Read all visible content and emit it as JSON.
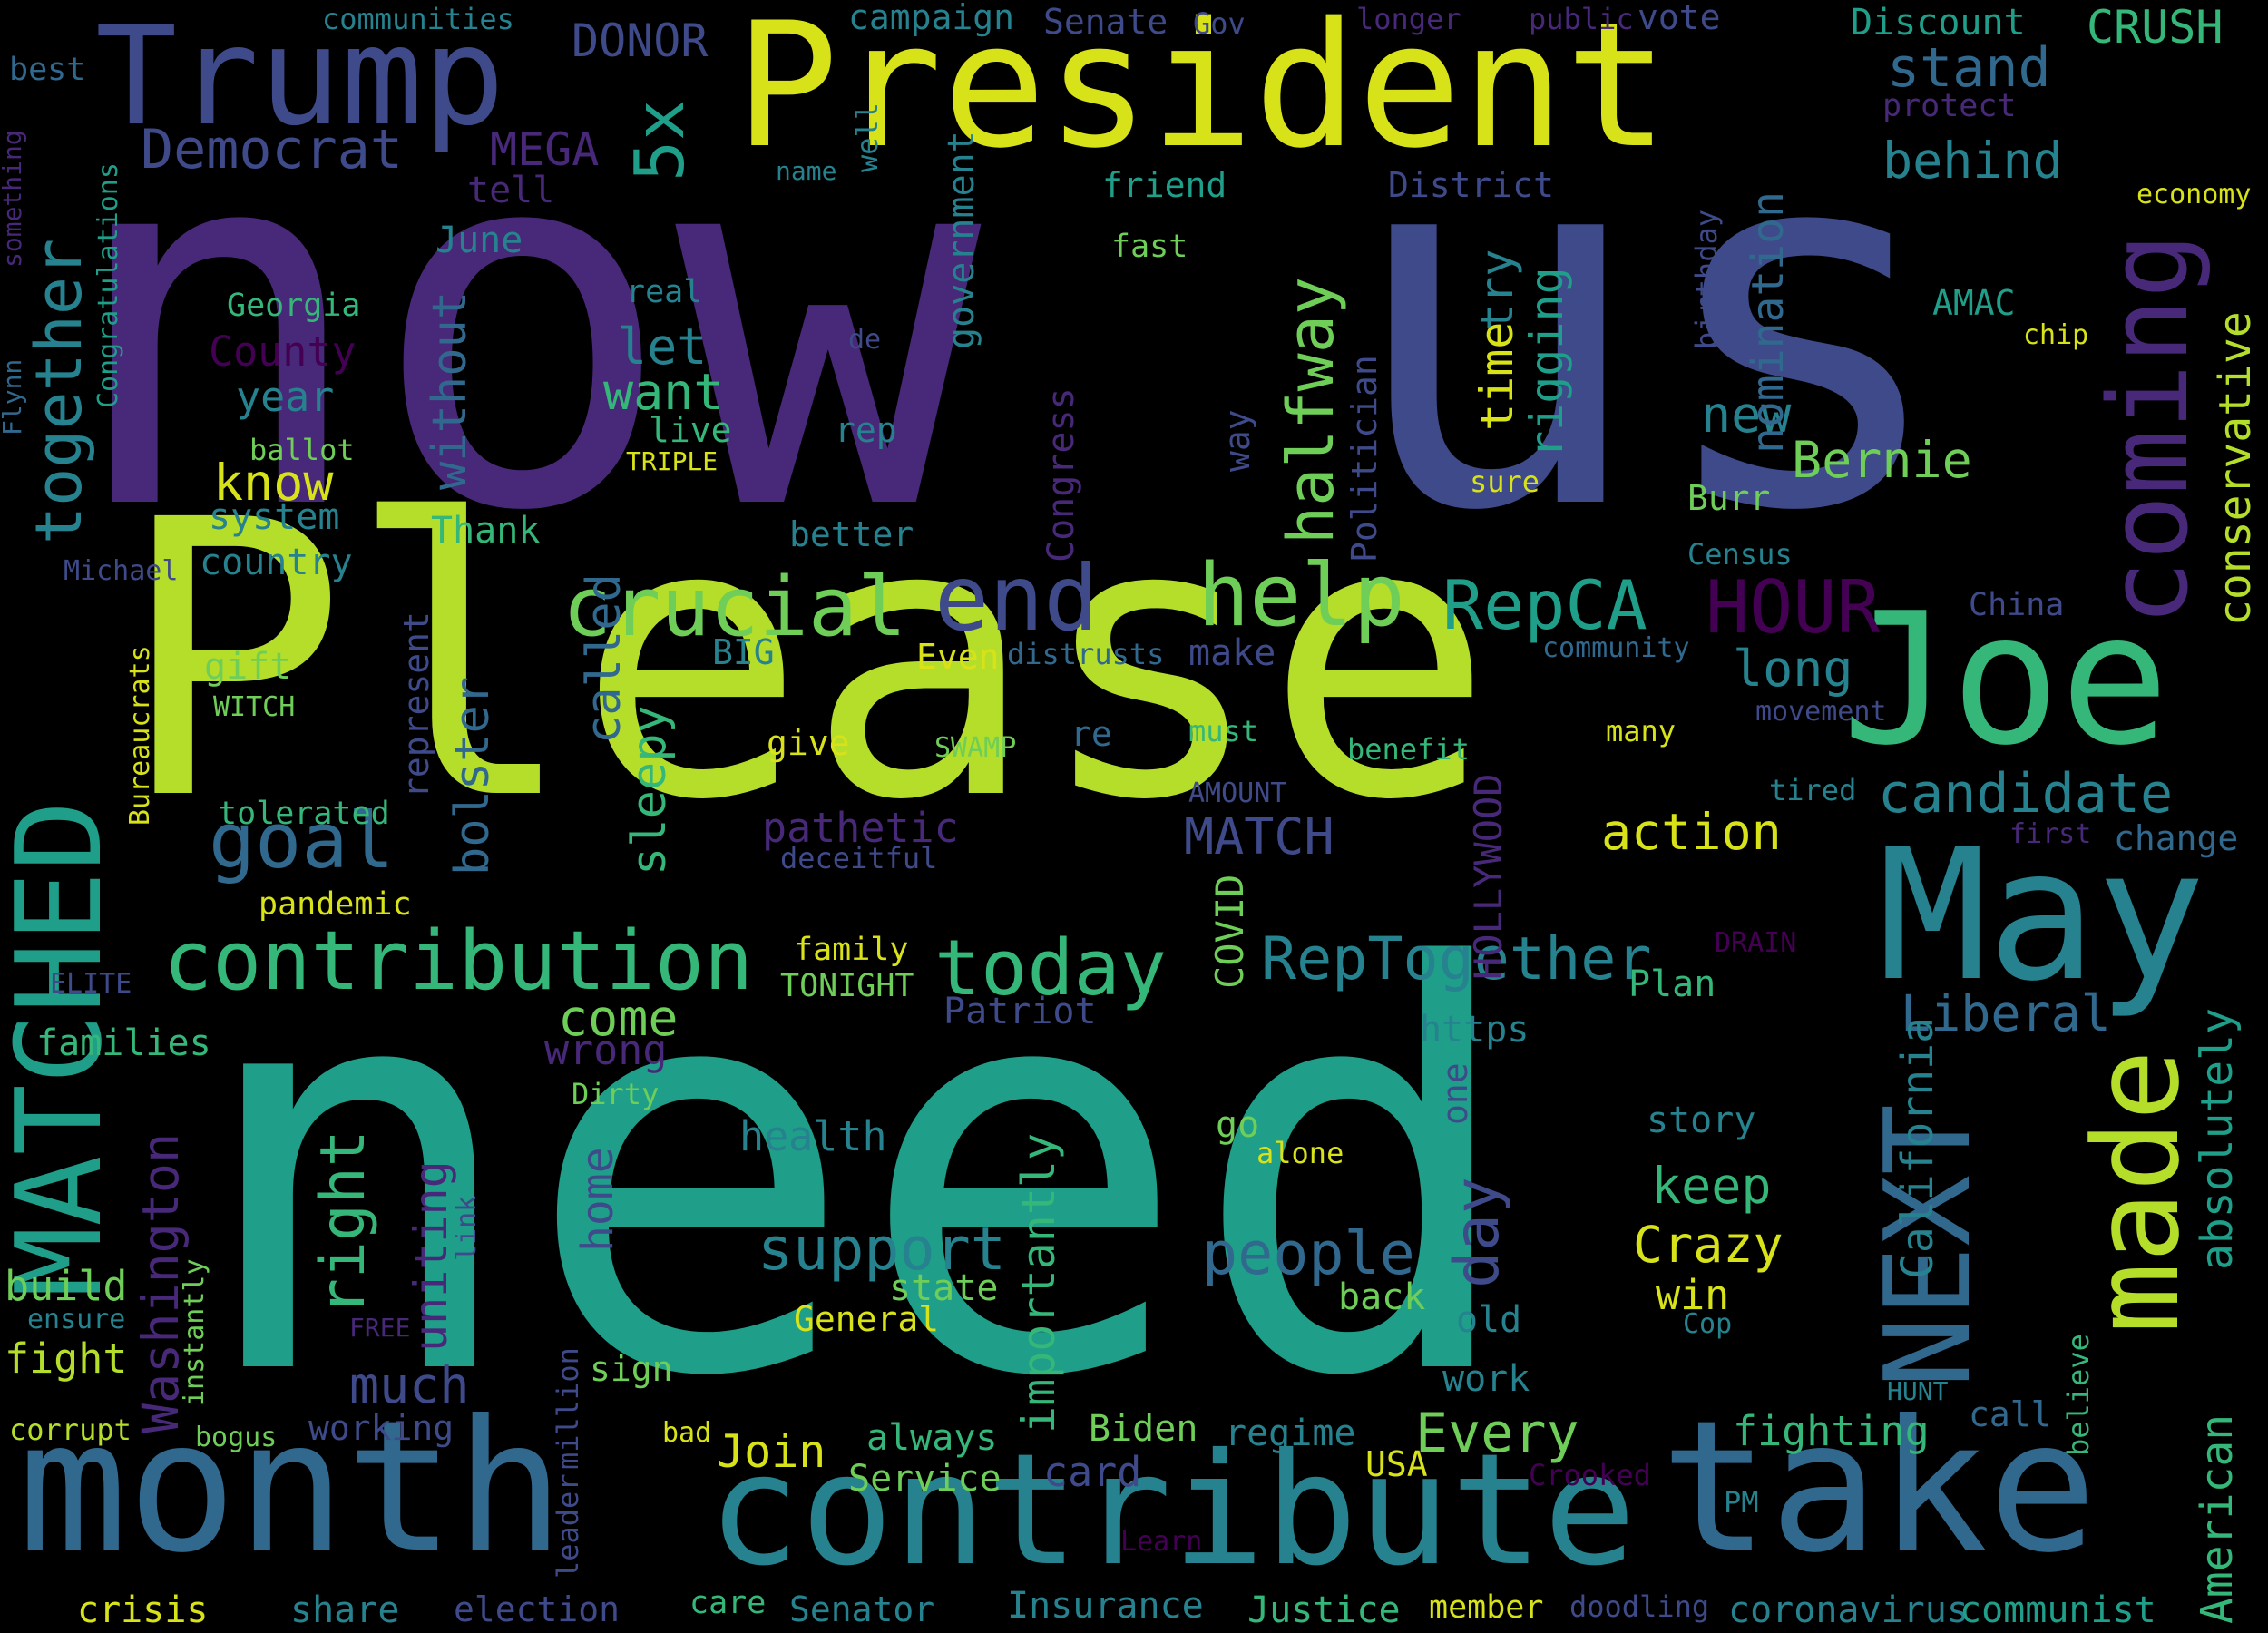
{
  "background": "#000000",
  "palette": [
    "#440154",
    "#482878",
    "#3e4a89",
    "#31688e",
    "#26828e",
    "#1f9e89",
    "#35b779",
    "#6ece58",
    "#b5de2b",
    "#fde725"
  ],
  "words": {
    "now": "now",
    "us": "us",
    "please": "Please",
    "need": "need",
    "president": "President",
    "trump": "Trump",
    "month": "month",
    "contribute": "contribute",
    "take": "take",
    "may": "May",
    "joe": "Joe",
    "matched": "MATCHED",
    "coming": "coming",
    "made": "made",
    "next": "NEXT",
    "crucial": "crucial",
    "end": "end",
    "help": "help",
    "contribution": "contribution",
    "today": "today",
    "goal": "goal",
    "together": "together",
    "halfway": "halfway",
    "reptogether": "RepTogether",
    "repca": "RepCA",
    "hour": "HOUR",
    "democrat": "Democrat",
    "stand": "stand",
    "behind": "behind",
    "support": "support",
    "people": "people",
    "candidate": "candidate",
    "bernie": "Bernie",
    "liberal": "Liberal",
    "absolutely": "absolutely",
    "american": "American",
    "california": "California",
    "conservative": "conservative",
    "crazy": "Crazy",
    "keep": "keep",
    "action": "action",
    "every": "Every",
    "join": "Join",
    "right": "right",
    "much": "much",
    "day": "day",
    "importantly": "importantly",
    "come": "come",
    "wrong": "wrong",
    "want": "want",
    "let": "let",
    "know": "know",
    "long": "long",
    "new": "new",
    "rigging": "rigging",
    "try": "try",
    "time": "time",
    "nomination": "nomination",
    "five_x": "5x",
    "mega": "MEGA",
    "donor": "DONOR",
    "crush": "CRUSH",
    "discount": "Discount",
    "washington": "Washington",
    "uniting": "uniting",
    "bolster": "bolster",
    "called": "called",
    "sleepy": "sleepy",
    "without": "without",
    "match": "MATCH",
    "hollywood": "HOLLYWOOD",
    "pathetic": "pathetic",
    "home": "home",
    "health": "health",
    "story": "story",
    "win": "win",
    "fighting": "fighting",
    "biden": "Biden",
    "regime": "regime",
    "card": "card",
    "always": "always",
    "service": "Service",
    "justice": "Justice",
    "member": "member",
    "coronavirus": "coronavirus",
    "communist": "communist",
    "insurance": "Insurance",
    "senator": "Senator",
    "care": "care",
    "election": "election",
    "share": "share",
    "crisis": "crisis",
    "working": "working",
    "fight": "fight",
    "build": "build",
    "families": "families",
    "gift": "gift",
    "witch": "WITCH",
    "system": "system",
    "country": "country",
    "year": "year",
    "county": "County",
    "georgia": "Georgia",
    "june": "June",
    "tell": "tell",
    "friend": "friend",
    "district": "District",
    "fast": "fast",
    "real": "real",
    "rep": "rep",
    "live": "live",
    "triple": "TRIPLE",
    "better": "better",
    "thank": "Thank",
    "represent": "represent",
    "big": "BIG",
    "even": "Even",
    "distrusts": "distrusts",
    "make": "make",
    "community": "community",
    "china": "China",
    "census": "Census",
    "burr": "Burr",
    "sure": "sure",
    "chip": "chip",
    "amac": "AMAC",
    "economy": "economy",
    "protect": "protect",
    "vote": "vote",
    "public": "public",
    "longer": "longer",
    "gov": "Gov",
    "senate": "Senate",
    "campaign": "campaign",
    "communities": "communities",
    "best": "best",
    "name": "name",
    "well": "well",
    "government": "government",
    "congress": "Congress",
    "politician": "Politician",
    "way": "way",
    "covid": "COVID",
    "amount": "AMOUNT",
    "must": "must",
    "benefit": "benefit",
    "many": "many",
    "movement": "movement",
    "tired": "tired",
    "first": "first",
    "change": "change",
    "drain": "DRAIN",
    "elite": "ELITE",
    "family": "family",
    "tonight": "TONIGHT",
    "patriot": "Patriot",
    "plan": "Plan",
    "https": "https",
    "one": "one",
    "go": "go",
    "alone": "alone",
    "dirty": "Dirty",
    "swamp": "SWAMP",
    "re": "re",
    "give": "give",
    "deceitful": "deceitful",
    "tolerated": "tolerated",
    "pandemic": "pandemic",
    "bureaucrats": "Bureaucrats",
    "michael": "Michael",
    "flynn": "Flynn",
    "congratulations": "Congratulations",
    "something": "something",
    "de": "de",
    "ballot": "ballot",
    "state": "state",
    "general": "General",
    "back": "back",
    "old": "old",
    "work": "work",
    "usa": "USA",
    "crooked": "Crooked",
    "pm": "PM",
    "learn": "Learn",
    "doodling": "doodling",
    "hunt": "HUNT",
    "call": "call",
    "believe": "believe",
    "cop": "Cop",
    "birthday": "birthday",
    "leader": "leader",
    "million": "million",
    "link": "link",
    "instantly": "instantly",
    "free": "FREE",
    "ensure": "ensure",
    "corrupt": "corrupt",
    "bogus": "bogus",
    "bad": "bad",
    "sign": "sign"
  }
}
